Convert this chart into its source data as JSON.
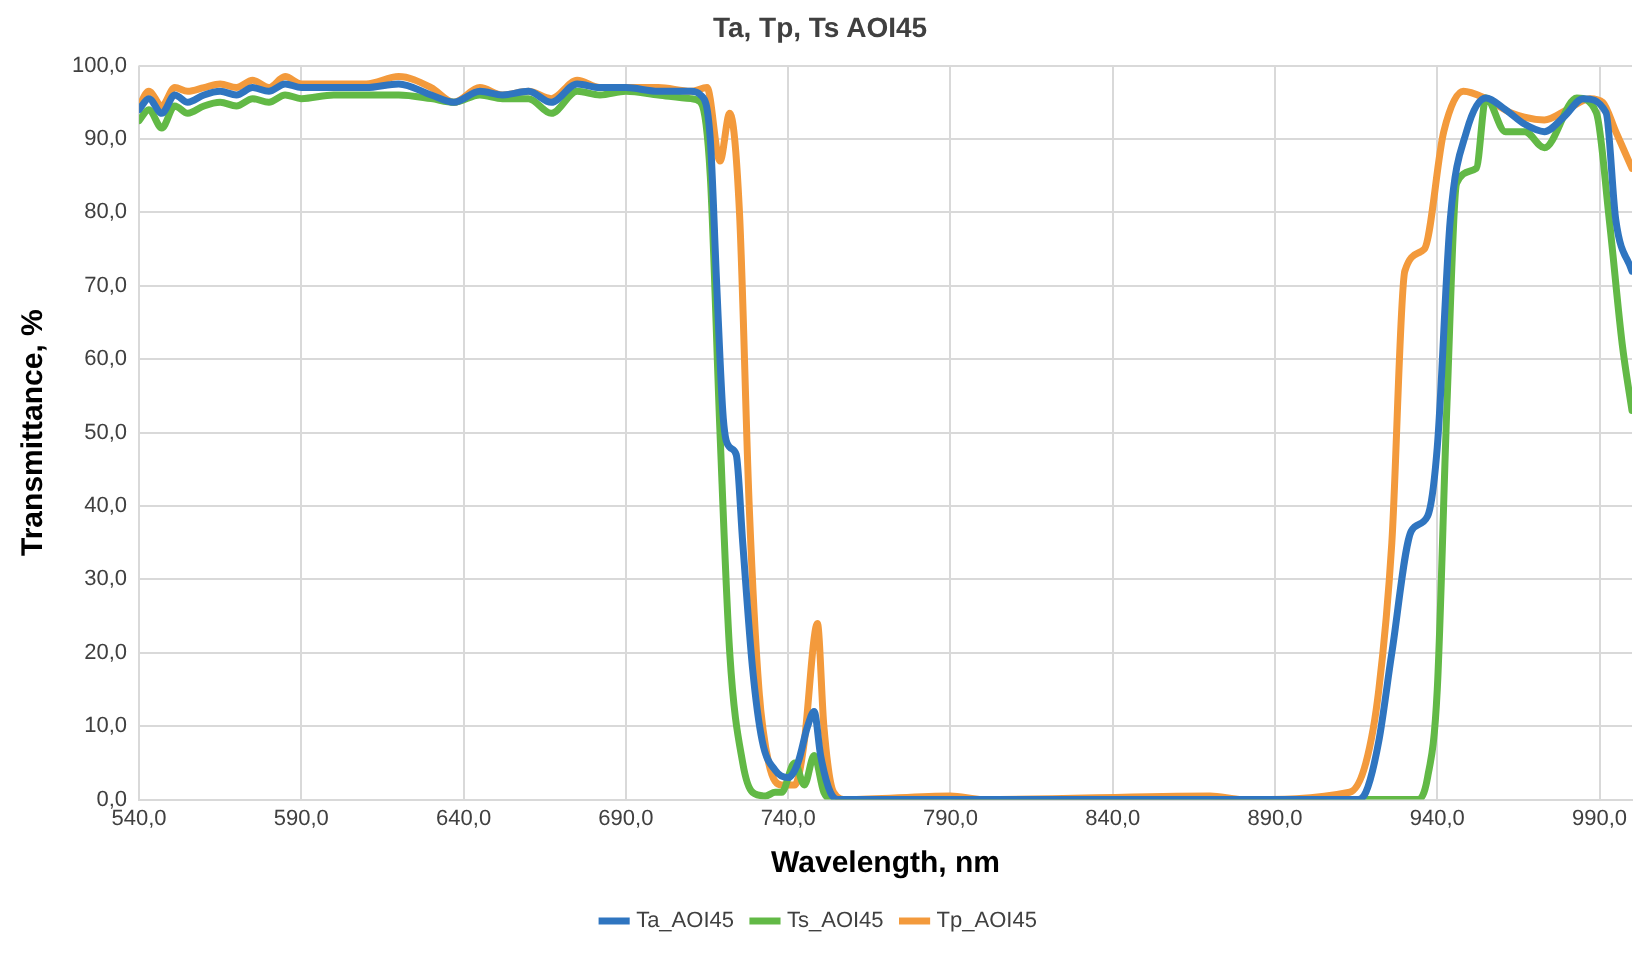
{
  "chart_data": {
    "type": "line",
    "title": "Ta, Tp, Ts AOI45",
    "xlabel": "Wavelength, nm",
    "ylabel": "Transmittance, %",
    "xlim": [
      540,
      1000
    ],
    "xticks": [
      {
        "value": 540,
        "label": "540,0"
      },
      {
        "value": 590,
        "label": "590,0"
      },
      {
        "value": 640,
        "label": "640,0"
      },
      {
        "value": 690,
        "label": "690,0"
      },
      {
        "value": 740,
        "label": "740,0"
      },
      {
        "value": 790,
        "label": "790,0"
      },
      {
        "value": 840,
        "label": "840,0"
      },
      {
        "value": 890,
        "label": "890,0"
      },
      {
        "value": 940,
        "label": "940,0"
      },
      {
        "value": 990,
        "label": "990,0"
      }
    ],
    "ylim": [
      0,
      100
    ],
    "yticks": [
      {
        "value": 0,
        "label": "0,0"
      },
      {
        "value": 10,
        "label": "10,0"
      },
      {
        "value": 20,
        "label": "20,0"
      },
      {
        "value": 30,
        "label": "30,0"
      },
      {
        "value": 40,
        "label": "40,0"
      },
      {
        "value": 50,
        "label": "50,0"
      },
      {
        "value": 60,
        "label": "60,0"
      },
      {
        "value": 70,
        "label": "70,0"
      },
      {
        "value": 80,
        "label": "80,0"
      },
      {
        "value": 90,
        "label": "90,0"
      },
      {
        "value": 100,
        "label": "100,0"
      }
    ],
    "grid": true,
    "legend": "bottom",
    "marker": "none",
    "line_style": "solid",
    "series": [
      {
        "name": "Ta_AOI45",
        "color": "#2f75c0",
        "x": [
          540,
          543,
          547,
          551,
          555,
          560,
          565,
          570,
          575,
          580,
          585,
          590,
          600,
          610,
          620,
          630,
          637,
          645,
          652,
          660,
          667,
          675,
          682,
          690,
          700,
          710,
          713,
          716,
          718,
          720,
          722,
          724,
          726,
          729,
          732,
          736,
          740,
          743,
          746,
          748,
          750,
          753,
          756,
          800,
          850,
          900,
          915,
          918,
          922,
          926,
          932,
          937,
          940,
          944,
          949,
          955,
          961,
          967,
          973,
          979,
          985,
          992,
          995,
          1000
        ],
        "values": [
          94,
          95.5,
          93.5,
          96,
          95,
          96,
          96.5,
          96,
          97,
          96.5,
          97.5,
          97,
          97,
          97,
          97.5,
          96,
          95,
          96.5,
          96,
          96.5,
          95,
          97.5,
          97,
          97,
          96.5,
          96.5,
          96,
          90,
          70,
          52,
          48,
          47,
          35,
          18,
          8,
          4,
          3,
          5,
          10,
          12,
          6,
          1,
          0,
          0,
          0,
          0,
          0,
          1,
          8,
          20,
          36.6,
          38.6,
          48,
          79,
          91,
          95.6,
          94,
          92,
          91,
          93,
          95.5,
          93.6,
          79,
          72
        ]
      },
      {
        "name": "Ts_AOI45",
        "color": "#62b946",
        "x": [
          540,
          543,
          547,
          551,
          555,
          560,
          565,
          570,
          575,
          580,
          585,
          590,
          600,
          610,
          620,
          630,
          637,
          645,
          652,
          660,
          667,
          675,
          682,
          690,
          700,
          710,
          713,
          716,
          719,
          722,
          726,
          729,
          733,
          736,
          738,
          742,
          745,
          748,
          751,
          754,
          800,
          850,
          900,
          934,
          937,
          940,
          943,
          946,
          952,
          955,
          961,
          967,
          973,
          983,
          989,
          993,
          997,
          1000
        ],
        "values": [
          92.5,
          94,
          91.5,
          94.5,
          93.5,
          94.5,
          95,
          94.5,
          95.5,
          95,
          96,
          95.5,
          96,
          96,
          96,
          95.5,
          95,
          96,
          95.5,
          95.5,
          93.5,
          96.5,
          96,
          96.5,
          96,
          95.5,
          95,
          85,
          50,
          20,
          5,
          1,
          0.5,
          1,
          1,
          5,
          2,
          6,
          1,
          0,
          0,
          0,
          0,
          0,
          3,
          15,
          54,
          84,
          86,
          95.6,
          91,
          91,
          88.8,
          95.6,
          93.6,
          79,
          62,
          53
        ]
      },
      {
        "name": "Tp_AOI45",
        "color": "#f39a3c",
        "x": [
          540,
          543,
          547,
          551,
          555,
          560,
          565,
          570,
          575,
          580,
          585,
          590,
          600,
          610,
          620,
          630,
          637,
          645,
          652,
          660,
          667,
          675,
          682,
          690,
          700,
          710,
          715,
          719,
          722,
          725,
          728,
          731,
          734,
          738,
          742,
          745,
          748,
          749,
          751,
          754,
          758,
          790,
          800,
          870,
          880,
          913,
          918,
          922,
          926,
          930,
          936,
          942,
          948,
          955,
          963,
          973,
          980,
          987,
          991,
          995,
          1000
        ],
        "values": [
          94.5,
          96.5,
          94.5,
          97,
          96.5,
          97,
          97.5,
          97,
          98,
          97,
          98.5,
          97.5,
          97.5,
          97.5,
          98.5,
          97,
          95,
          97,
          96,
          96.5,
          95.5,
          98,
          97,
          97,
          97,
          96.5,
          97,
          87,
          93.5,
          80,
          40,
          15,
          5,
          2,
          2,
          8,
          22,
          24,
          10,
          1,
          0,
          0.5,
          0,
          0.5,
          0,
          1,
          5,
          15,
          35,
          72,
          75,
          91,
          96.5,
          95.5,
          93.5,
          92.6,
          94,
          95.5,
          95,
          91,
          86
        ]
      }
    ]
  }
}
